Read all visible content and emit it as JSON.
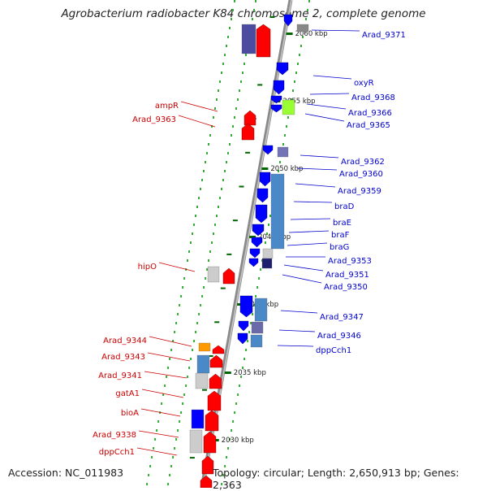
{
  "title": "Agrobacterium radiobacter K84 chromosome 2, complete genome",
  "footer": {
    "accession": "Accession: NC_011983",
    "topology": "Topology: circular; Length: 2,650,913 bp; Genes: 2,363"
  },
  "colors": {
    "right_label": "#0000cc",
    "left_label": "#cc0000",
    "forward_gene": "#ff0000",
    "reverse_gene": "#0000ff",
    "backbone": "#888888",
    "tick": "#006600",
    "dots": "#33aa33",
    "orange": "#ff9900",
    "lime": "#99ff33",
    "steel": "#4a88c8",
    "purple": "#4b4b9f",
    "gray_box": "#cccccc",
    "dark_gray": "#555555"
  },
  "kbp_labels": [
    "2060 kbp",
    "2055 kbp",
    "2050 kbp",
    "2045 kbp",
    "2040 kbp",
    "2035 kbp",
    "2030 kbp"
  ],
  "right_labels": [
    "Arad_9371",
    "oxyR",
    "Arad_9368",
    "Arad_9366",
    "Arad_9365",
    "Arad_9362",
    "Arad_9360",
    "Arad_9359",
    "braD",
    "braE",
    "braF",
    "braG",
    "Arad_9353",
    "Arad_9351",
    "Arad_9350",
    "Arad_9347",
    "Arad_9346",
    "dppCch1"
  ],
  "left_labels": [
    "ampR",
    "Arad_9363",
    "hipO",
    "Arad_9344",
    "Arad_9343",
    "Arad_9341",
    "gatA1",
    "bioA",
    "Arad_9338",
    "dppCch1"
  ]
}
